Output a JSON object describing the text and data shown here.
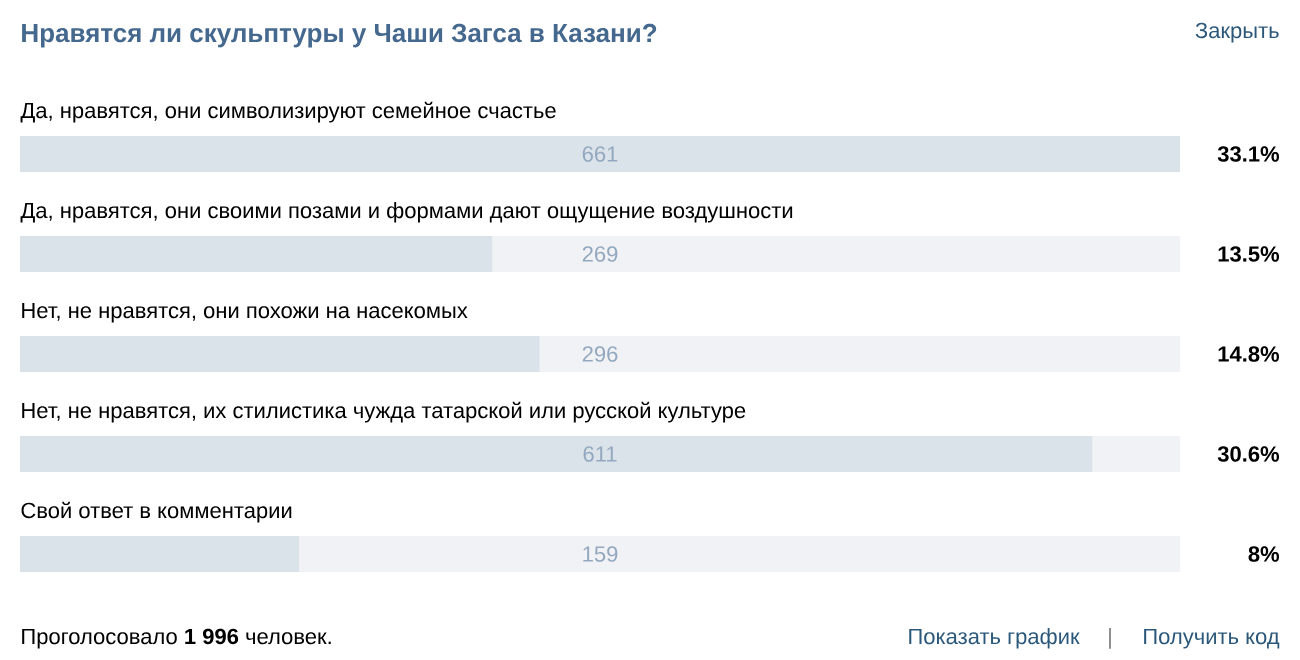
{
  "chart_data": {
    "type": "bar",
    "orientation": "horizontal",
    "title": "Нравятся ли скульптуры у Чаши Загса в Казани?",
    "categories": [
      "Да, нравятся, они символизируют семейное счастье",
      "Да, нравятся, они своими позами и формами дают ощущение воздушности",
      "Нет, не нравятся, они похожи на насекомых",
      "Нет, не нравятся, их стилистика чужда татарской или русской культуре",
      "Свой ответ в комментарии"
    ],
    "values": [
      661,
      269,
      296,
      611,
      159
    ],
    "color": "#dae2ea",
    "data_labels": true,
    "annotations": [
      "Закрыть",
      "Проголосовало **1 996** человек.",
      "Показать график",
      "|",
      "Получить код",
      "33.1%",
      "13.5%",
      "14.8%",
      "30.6%",
      "8%"
    ]
  }
}
